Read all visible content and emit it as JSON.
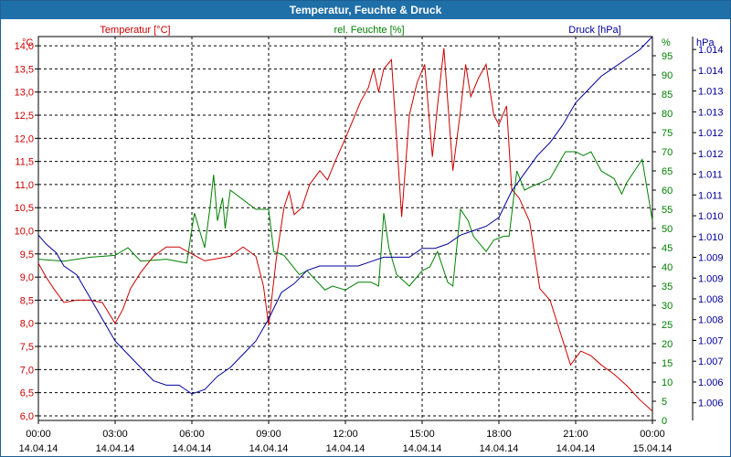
{
  "window": {
    "title": "Temperatur, Feuchte & Druck"
  },
  "colors": {
    "temperature": "#cc0000",
    "humidity": "#008000",
    "pressure": "#000099",
    "grid": "#000000",
    "titlebar": "#1f6fa8"
  },
  "chart_data": {
    "type": "line",
    "title": "Temperatur, Feuchte & Druck",
    "x_ticks": [
      {
        "time": "00:00",
        "date": "14.04.14"
      },
      {
        "time": "03:00",
        "date": "14.04.14"
      },
      {
        "time": "06:00",
        "date": "14.04.14"
      },
      {
        "time": "09:00",
        "date": "14.04.14"
      },
      {
        "time": "12:00",
        "date": "14.04.14"
      },
      {
        "time": "15:00",
        "date": "14.04.14"
      },
      {
        "time": "18:00",
        "date": "14.04.14"
      },
      {
        "time": "21:00",
        "date": "14.04.14"
      },
      {
        "time": "00:00",
        "date": "15.04.14"
      }
    ],
    "xlim_hours": [
      0,
      24
    ],
    "axes": {
      "temperature": {
        "label": "Temperatur [°C]",
        "unit": "°C",
        "ylim": [
          5.9,
          14.2
        ],
        "ticks": [
          "6,0",
          "6,5",
          "7,0",
          "7,5",
          "8,0",
          "8,5",
          "9,0",
          "9,5",
          "10,0",
          "10,5",
          "11,0",
          "11,5",
          "12,0",
          "12,5",
          "13,0",
          "13,5",
          "14,0"
        ]
      },
      "humidity": {
        "label": "rel. Feuchte [%]",
        "unit": "%",
        "ylim": [
          0,
          100
        ],
        "ticks": [
          "0",
          "5",
          "10",
          "15",
          "20",
          "25",
          "30",
          "35",
          "40",
          "45",
          "50",
          "55",
          "60",
          "65",
          "70",
          "75",
          "80",
          "85",
          "90",
          "95"
        ]
      },
      "pressure": {
        "label": "Druck [hPa]",
        "unit": "hPa",
        "ylim": [
          1005.6,
          1014.3
        ],
        "ticks": [
          "1.006",
          "1.006",
          "1.007",
          "1.007",
          "1.008",
          "1.008",
          "1.009",
          "1.009",
          "1.010",
          "1.010",
          "1.011",
          "1.011",
          "1.012",
          "1.012",
          "1.013",
          "1.013",
          "1.014",
          "1.014"
        ]
      }
    },
    "series": [
      {
        "name": "Temperatur [°C]",
        "axis": "temperature",
        "points": [
          [
            0,
            9.3
          ],
          [
            0.3,
            9.0
          ],
          [
            0.6,
            8.75
          ],
          [
            1,
            8.45
          ],
          [
            1.5,
            8.5
          ],
          [
            2,
            8.5
          ],
          [
            2.5,
            8.45
          ],
          [
            3,
            8.0
          ],
          [
            3.3,
            8.3
          ],
          [
            3.6,
            8.75
          ],
          [
            4,
            9.1
          ],
          [
            4.5,
            9.45
          ],
          [
            5,
            9.65
          ],
          [
            5.5,
            9.65
          ],
          [
            6,
            9.5
          ],
          [
            6.5,
            9.35
          ],
          [
            7,
            9.4
          ],
          [
            7.5,
            9.45
          ],
          [
            8,
            9.65
          ],
          [
            8.5,
            9.45
          ],
          [
            8.8,
            8.8
          ],
          [
            9.0,
            7.95
          ],
          [
            9.3,
            9.4
          ],
          [
            9.6,
            10.5
          ],
          [
            9.8,
            10.85
          ],
          [
            10,
            10.35
          ],
          [
            10.3,
            10.5
          ],
          [
            10.6,
            11.0
          ],
          [
            11,
            11.3
          ],
          [
            11.3,
            11.1
          ],
          [
            11.6,
            11.5
          ],
          [
            12,
            12.0
          ],
          [
            12.3,
            12.4
          ],
          [
            12.6,
            12.8
          ],
          [
            12.9,
            13.1
          ],
          [
            13.1,
            13.5
          ],
          [
            13.3,
            13.0
          ],
          [
            13.5,
            13.5
          ],
          [
            13.8,
            13.7
          ],
          [
            14.0,
            12.0
          ],
          [
            14.2,
            10.3
          ],
          [
            14.5,
            12.5
          ],
          [
            14.8,
            13.2
          ],
          [
            15.1,
            13.6
          ],
          [
            15.4,
            11.6
          ],
          [
            15.6,
            12.7
          ],
          [
            15.85,
            13.95
          ],
          [
            16.0,
            12.8
          ],
          [
            16.2,
            11.3
          ],
          [
            16.5,
            12.6
          ],
          [
            16.7,
            13.6
          ],
          [
            16.9,
            12.9
          ],
          [
            17.2,
            13.3
          ],
          [
            17.5,
            13.6
          ],
          [
            17.8,
            12.5
          ],
          [
            18.0,
            12.3
          ],
          [
            18.3,
            12.7
          ],
          [
            18.5,
            10.9
          ],
          [
            18.8,
            10.7
          ],
          [
            19.2,
            10.2
          ],
          [
            19.6,
            8.75
          ],
          [
            20,
            8.5
          ],
          [
            20.4,
            7.8
          ],
          [
            20.8,
            7.1
          ],
          [
            21.2,
            7.4
          ],
          [
            21.6,
            7.3
          ],
          [
            22,
            7.1
          ],
          [
            22.5,
            6.9
          ],
          [
            23,
            6.65
          ],
          [
            23.5,
            6.35
          ],
          [
            24,
            6.1
          ]
        ]
      },
      {
        "name": "rel. Feuchte [%]",
        "axis": "humidity",
        "points": [
          [
            0,
            42
          ],
          [
            1,
            41.5
          ],
          [
            2,
            42.5
          ],
          [
            3,
            43
          ],
          [
            3.5,
            45
          ],
          [
            4,
            41.5
          ],
          [
            5,
            42
          ],
          [
            5.8,
            41
          ],
          [
            6,
            50
          ],
          [
            6.1,
            54
          ],
          [
            6.5,
            45
          ],
          [
            6.7,
            55
          ],
          [
            6.85,
            64
          ],
          [
            7.0,
            52
          ],
          [
            7.2,
            58
          ],
          [
            7.3,
            50
          ],
          [
            7.5,
            60
          ],
          [
            8.5,
            55
          ],
          [
            9.0,
            55
          ],
          [
            9.2,
            44
          ],
          [
            9.6,
            43
          ],
          [
            10.2,
            38
          ],
          [
            10.5,
            39
          ],
          [
            11.2,
            34
          ],
          [
            11.5,
            35
          ],
          [
            12.0,
            34
          ],
          [
            12.5,
            36
          ],
          [
            13.0,
            36
          ],
          [
            13.3,
            35
          ],
          [
            13.5,
            54
          ],
          [
            13.7,
            45
          ],
          [
            14.0,
            38
          ],
          [
            14.5,
            35
          ],
          [
            15.0,
            39
          ],
          [
            15.3,
            40
          ],
          [
            15.6,
            44
          ],
          [
            16.0,
            36
          ],
          [
            16.2,
            35
          ],
          [
            16.5,
            55
          ],
          [
            16.8,
            52
          ],
          [
            17.0,
            48
          ],
          [
            17.5,
            44
          ],
          [
            17.8,
            47
          ],
          [
            18.2,
            48
          ],
          [
            18.4,
            48
          ],
          [
            18.7,
            65
          ],
          [
            19.0,
            60
          ],
          [
            19.3,
            61
          ],
          [
            20.0,
            63
          ],
          [
            20.6,
            70
          ],
          [
            21.0,
            70
          ],
          [
            21.3,
            69
          ],
          [
            21.6,
            70
          ],
          [
            22.0,
            65
          ],
          [
            22.5,
            63
          ],
          [
            22.8,
            59
          ],
          [
            23.0,
            62
          ],
          [
            23.3,
            65
          ],
          [
            23.6,
            68
          ],
          [
            24,
            52
          ]
        ]
      },
      {
        "name": "Druck [hPa]",
        "axis": "pressure",
        "points": [
          [
            0,
            1009.8
          ],
          [
            0.3,
            1009.6
          ],
          [
            0.7,
            1009.4
          ],
          [
            1,
            1009.1
          ],
          [
            1.5,
            1008.9
          ],
          [
            2,
            1008.4
          ],
          [
            2.5,
            1007.9
          ],
          [
            3,
            1007.4
          ],
          [
            3.5,
            1007.1
          ],
          [
            4,
            1006.8
          ],
          [
            4.5,
            1006.5
          ],
          [
            5,
            1006.4
          ],
          [
            5.5,
            1006.4
          ],
          [
            6,
            1006.2
          ],
          [
            6.5,
            1006.3
          ],
          [
            7,
            1006.6
          ],
          [
            7.5,
            1006.8
          ],
          [
            8,
            1007.1
          ],
          [
            8.5,
            1007.4
          ],
          [
            9,
            1007.9
          ],
          [
            9.5,
            1008.5
          ],
          [
            10,
            1008.7
          ],
          [
            10.5,
            1009.0
          ],
          [
            11,
            1009.1
          ],
          [
            11.5,
            1009.1
          ],
          [
            12,
            1009.1
          ],
          [
            12.5,
            1009.1
          ],
          [
            13,
            1009.2
          ],
          [
            13.5,
            1009.3
          ],
          [
            14,
            1009.3
          ],
          [
            14.5,
            1009.3
          ],
          [
            15,
            1009.5
          ],
          [
            15.5,
            1009.5
          ],
          [
            16,
            1009.6
          ],
          [
            16.5,
            1009.8
          ],
          [
            17,
            1009.9
          ],
          [
            17.5,
            1010.0
          ],
          [
            18,
            1010.2
          ],
          [
            18.5,
            1010.8
          ],
          [
            19,
            1011.2
          ],
          [
            19.5,
            1011.6
          ],
          [
            20,
            1011.9
          ],
          [
            20.5,
            1012.3
          ],
          [
            21,
            1012.8
          ],
          [
            21.5,
            1013.1
          ],
          [
            22,
            1013.4
          ],
          [
            22.5,
            1013.6
          ],
          [
            23,
            1013.8
          ],
          [
            23.5,
            1014.0
          ],
          [
            24,
            1014.3
          ]
        ]
      }
    ]
  }
}
